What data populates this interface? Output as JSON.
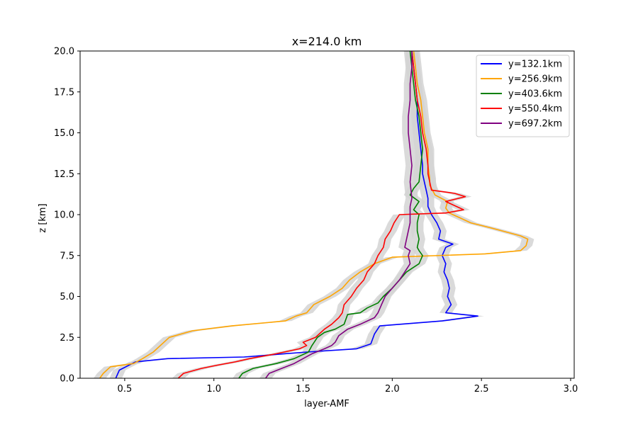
{
  "chart_data": {
    "type": "line",
    "title": "x=214.0 km",
    "xlabel": "layer-AMF",
    "ylabel": "z [km]",
    "xlim": [
      0.25,
      3.02
    ],
    "ylim": [
      0,
      20
    ],
    "xticks": [
      "0.5",
      "1.0",
      "1.5",
      "2.0",
      "2.5",
      "3.0"
    ],
    "yticks": [
      "0.0",
      "2.5",
      "5.0",
      "7.5",
      "10.0",
      "12.5",
      "15.0",
      "17.5",
      "20.0"
    ],
    "legend_position": "top-right",
    "uncertainty_band_color": "#d3d3d3",
    "series": [
      {
        "name": "y=132.1km",
        "color": "#0000ff",
        "points": [
          [
            0.45,
            0
          ],
          [
            0.47,
            0.5
          ],
          [
            0.56,
            1.0
          ],
          [
            0.74,
            1.2
          ],
          [
            1.17,
            1.3
          ],
          [
            1.52,
            1.6
          ],
          [
            1.8,
            1.8
          ],
          [
            1.88,
            2.1
          ],
          [
            1.9,
            2.7
          ],
          [
            1.93,
            3.2
          ],
          [
            2.28,
            3.5
          ],
          [
            2.48,
            3.8
          ],
          [
            2.3,
            4.0
          ],
          [
            2.33,
            4.5
          ],
          [
            2.31,
            5.0
          ],
          [
            2.32,
            5.5
          ],
          [
            2.31,
            6.0
          ],
          [
            2.29,
            6.5
          ],
          [
            2.3,
            7.0
          ],
          [
            2.28,
            7.5
          ],
          [
            2.3,
            8.0
          ],
          [
            2.34,
            8.2
          ],
          [
            2.26,
            8.5
          ],
          [
            2.27,
            9.0
          ],
          [
            2.25,
            9.5
          ],
          [
            2.22,
            10.0
          ],
          [
            2.2,
            10.5
          ],
          [
            2.2,
            11.0
          ],
          [
            2.19,
            11.5
          ],
          [
            2.18,
            12.0
          ],
          [
            2.17,
            12.5
          ],
          [
            2.17,
            13.0
          ],
          [
            2.16,
            14.0
          ],
          [
            2.15,
            15.0
          ],
          [
            2.14,
            16.0
          ],
          [
            2.14,
            17.0
          ],
          [
            2.13,
            18.0
          ],
          [
            2.12,
            19.0
          ],
          [
            2.11,
            20.0
          ]
        ]
      },
      {
        "name": "y=256.9km",
        "color": "#ffa500",
        "points": [
          [
            0.36,
            0
          ],
          [
            0.38,
            0.3
          ],
          [
            0.42,
            0.7
          ],
          [
            0.55,
            0.9
          ],
          [
            0.6,
            1.2
          ],
          [
            0.66,
            1.6
          ],
          [
            0.7,
            2.0
          ],
          [
            0.75,
            2.5
          ],
          [
            0.88,
            2.9
          ],
          [
            1.1,
            3.2
          ],
          [
            1.4,
            3.5
          ],
          [
            1.46,
            3.8
          ],
          [
            1.52,
            4.0
          ],
          [
            1.56,
            4.5
          ],
          [
            1.65,
            5.0
          ],
          [
            1.72,
            5.5
          ],
          [
            1.76,
            6.0
          ],
          [
            1.82,
            6.5
          ],
          [
            1.9,
            7.0
          ],
          [
            2.0,
            7.4
          ],
          [
            2.52,
            7.6
          ],
          [
            2.72,
            7.8
          ],
          [
            2.75,
            8.1
          ],
          [
            2.76,
            8.5
          ],
          [
            2.72,
            8.7
          ],
          [
            2.55,
            9.2
          ],
          [
            2.44,
            9.5
          ],
          [
            2.38,
            9.8
          ],
          [
            2.32,
            10.1
          ],
          [
            2.3,
            10.4
          ],
          [
            2.31,
            10.8
          ],
          [
            2.24,
            11.2
          ],
          [
            2.21,
            11.8
          ],
          [
            2.21,
            12.2
          ],
          [
            2.2,
            13.0
          ],
          [
            2.2,
            14.0
          ],
          [
            2.18,
            15.0
          ],
          [
            2.17,
            16.0
          ],
          [
            2.16,
            17.0
          ],
          [
            2.14,
            18.0
          ],
          [
            2.13,
            19.0
          ],
          [
            2.12,
            20.0
          ]
        ]
      },
      {
        "name": "y=403.6km",
        "color": "#008000",
        "points": [
          [
            1.14,
            0
          ],
          [
            1.16,
            0.3
          ],
          [
            1.22,
            0.6
          ],
          [
            1.35,
            0.9
          ],
          [
            1.45,
            1.2
          ],
          [
            1.53,
            1.6
          ],
          [
            1.55,
            2.0
          ],
          [
            1.58,
            2.5
          ],
          [
            1.62,
            2.8
          ],
          [
            1.68,
            3.0
          ],
          [
            1.73,
            3.3
          ],
          [
            1.74,
            3.6
          ],
          [
            1.75,
            3.9
          ],
          [
            1.82,
            4.0
          ],
          [
            1.86,
            4.3
          ],
          [
            1.92,
            4.6
          ],
          [
            1.95,
            5.0
          ],
          [
            2.0,
            5.5
          ],
          [
            2.04,
            6.0
          ],
          [
            2.08,
            6.5
          ],
          [
            2.15,
            7.0
          ],
          [
            2.17,
            7.5
          ],
          [
            2.15,
            7.8
          ],
          [
            2.14,
            8.0
          ],
          [
            2.15,
            8.5
          ],
          [
            2.14,
            9.0
          ],
          [
            2.14,
            9.5
          ],
          [
            2.15,
            10.0
          ],
          [
            2.12,
            10.3
          ],
          [
            2.15,
            10.8
          ],
          [
            2.1,
            11.2
          ],
          [
            2.12,
            11.6
          ],
          [
            2.15,
            12.0
          ],
          [
            2.16,
            13.0
          ],
          [
            2.17,
            14.0
          ],
          [
            2.16,
            15.0
          ],
          [
            2.15,
            16.0
          ],
          [
            2.13,
            17.0
          ],
          [
            2.12,
            18.0
          ],
          [
            2.11,
            19.0
          ],
          [
            2.1,
            20.0
          ]
        ]
      },
      {
        "name": "y=550.4km",
        "color": "#ff0000",
        "points": [
          [
            0.8,
            0
          ],
          [
            0.83,
            0.3
          ],
          [
            0.93,
            0.6
          ],
          [
            1.02,
            0.8
          ],
          [
            1.12,
            1.0
          ],
          [
            1.2,
            1.2
          ],
          [
            1.35,
            1.5
          ],
          [
            1.48,
            1.8
          ],
          [
            1.52,
            2.0
          ],
          [
            1.5,
            2.2
          ],
          [
            1.57,
            2.5
          ],
          [
            1.6,
            2.8
          ],
          [
            1.62,
            3.0
          ],
          [
            1.66,
            3.3
          ],
          [
            1.7,
            3.7
          ],
          [
            1.72,
            4.0
          ],
          [
            1.73,
            4.5
          ],
          [
            1.77,
            5.0
          ],
          [
            1.8,
            5.5
          ],
          [
            1.84,
            6.0
          ],
          [
            1.86,
            6.5
          ],
          [
            1.9,
            7.0
          ],
          [
            1.92,
            7.5
          ],
          [
            1.95,
            8.0
          ],
          [
            1.96,
            8.5
          ],
          [
            1.99,
            9.0
          ],
          [
            2.01,
            9.5
          ],
          [
            2.04,
            10.0
          ],
          [
            2.3,
            10.1
          ],
          [
            2.4,
            10.3
          ],
          [
            2.3,
            10.8
          ],
          [
            2.41,
            11.1
          ],
          [
            2.35,
            11.3
          ],
          [
            2.22,
            11.5
          ],
          [
            2.2,
            12.5
          ],
          [
            2.2,
            13.0
          ],
          [
            2.19,
            14.0
          ],
          [
            2.17,
            15.0
          ],
          [
            2.16,
            16.0
          ],
          [
            2.14,
            17.0
          ],
          [
            2.13,
            18.0
          ],
          [
            2.12,
            19.0
          ],
          [
            2.11,
            20.0
          ]
        ]
      },
      {
        "name": "y=697.2km",
        "color": "#800080",
        "points": [
          [
            1.29,
            0
          ],
          [
            1.31,
            0.3
          ],
          [
            1.38,
            0.6
          ],
          [
            1.45,
            0.9
          ],
          [
            1.5,
            1.2
          ],
          [
            1.55,
            1.5
          ],
          [
            1.62,
            1.8
          ],
          [
            1.66,
            2.0
          ],
          [
            1.68,
            2.2
          ],
          [
            1.7,
            2.6
          ],
          [
            1.75,
            3.0
          ],
          [
            1.82,
            3.3
          ],
          [
            1.9,
            3.7
          ],
          [
            1.92,
            4.0
          ],
          [
            1.94,
            4.5
          ],
          [
            1.96,
            5.0
          ],
          [
            2.0,
            5.5
          ],
          [
            2.04,
            6.0
          ],
          [
            2.07,
            6.5
          ],
          [
            2.1,
            7.0
          ],
          [
            2.09,
            7.5
          ],
          [
            2.1,
            7.8
          ],
          [
            2.07,
            8.0
          ],
          [
            2.08,
            8.5
          ],
          [
            2.09,
            9.0
          ],
          [
            2.1,
            9.5
          ],
          [
            2.1,
            10.0
          ],
          [
            2.1,
            10.5
          ],
          [
            2.11,
            11.0
          ],
          [
            2.1,
            12.0
          ],
          [
            2.11,
            13.0
          ],
          [
            2.1,
            14.0
          ],
          [
            2.09,
            15.0
          ],
          [
            2.09,
            16.0
          ],
          [
            2.1,
            17.0
          ],
          [
            2.1,
            18.0
          ],
          [
            2.11,
            19.0
          ],
          [
            2.11,
            20.0
          ]
        ]
      }
    ]
  }
}
